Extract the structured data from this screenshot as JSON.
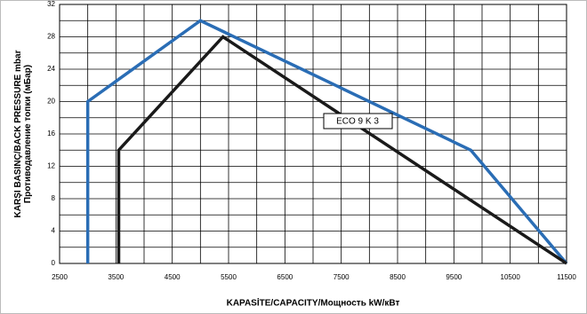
{
  "chart_data": {
    "type": "line",
    "xlabel": "KAPASİTE/CAPACITY/Мощность  kW/кВт",
    "ylabel": [
      "KARŞI BASINÇ/BACK PRESSURE mbar",
      "Противодавление топки (мБар)"
    ],
    "xlim": [
      2500,
      11500
    ],
    "xticks": [
      2500,
      3500,
      4500,
      5500,
      6500,
      7500,
      8500,
      9500,
      10500,
      11500
    ],
    "xgrid": [
      3000,
      4000,
      5000,
      6000,
      7000,
      8000,
      9000,
      10000,
      11000
    ],
    "ylim": [
      0,
      32
    ],
    "yticks": [
      0,
      4,
      8,
      12,
      16,
      20,
      24,
      28,
      32
    ],
    "ygrid": [
      2,
      6,
      10,
      14,
      18,
      22,
      26,
      30
    ],
    "grid": true,
    "series": [
      {
        "color": "#2a6db5",
        "x": [
          3000,
          3000,
          5000,
          9800,
          11500
        ],
        "values": [
          0,
          20,
          30,
          14,
          0
        ]
      },
      {
        "color": "#1a1a1a",
        "x": [
          3550,
          3550,
          5400,
          11500
        ],
        "values": [
          0,
          14,
          28,
          0
        ]
      }
    ],
    "annotation": "ECO 9 K 3"
  }
}
